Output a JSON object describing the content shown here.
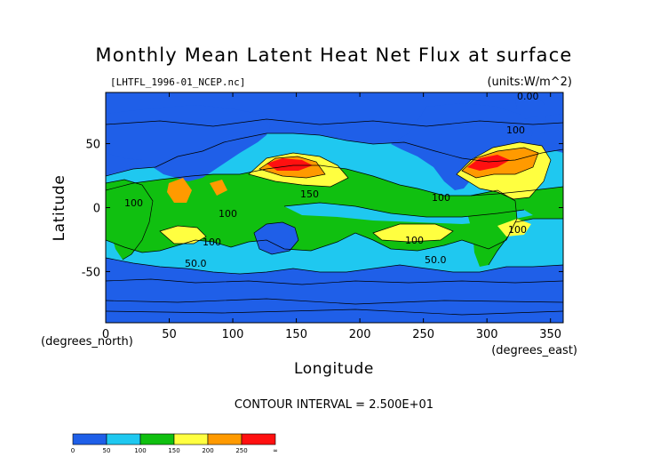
{
  "chart_data": {
    "type": "heatmap",
    "title": "Monthly Mean Latent Heat Net Flux at surface",
    "source_label": "[LHTFL_1996-01_NCEP.nc]",
    "units_label": "(units:W/m^2)",
    "xlabel": "Longitude",
    "ylabel": "Latitude",
    "x_unit_label": "(degrees_east)",
    "y_unit_label": "(degrees_north)",
    "xlim": [
      0,
      360
    ],
    "ylim": [
      -90,
      90
    ],
    "x_ticks": [
      0,
      50,
      100,
      150,
      200,
      250,
      300,
      350
    ],
    "y_ticks": [
      50,
      0,
      -50
    ],
    "contour_interval_text": "CONTOUR INTERVAL = 2.500E+01",
    "contour_labels": [
      "100",
      "150",
      "100",
      "100",
      "100",
      "50.0",
      "100",
      "100",
      "50.0",
      "100",
      "0.00"
    ],
    "colorbar": {
      "levels": [
        0,
        50,
        100,
        150,
        200,
        250
      ],
      "tick_labels": [
        "0",
        "50",
        "100",
        "150",
        "200",
        "250",
        "∞"
      ],
      "colors": [
        "#1f5fe8",
        "#1fc8f0",
        "#10c010",
        "#ffff40",
        "#ff9a00",
        "#ff1010"
      ]
    }
  }
}
